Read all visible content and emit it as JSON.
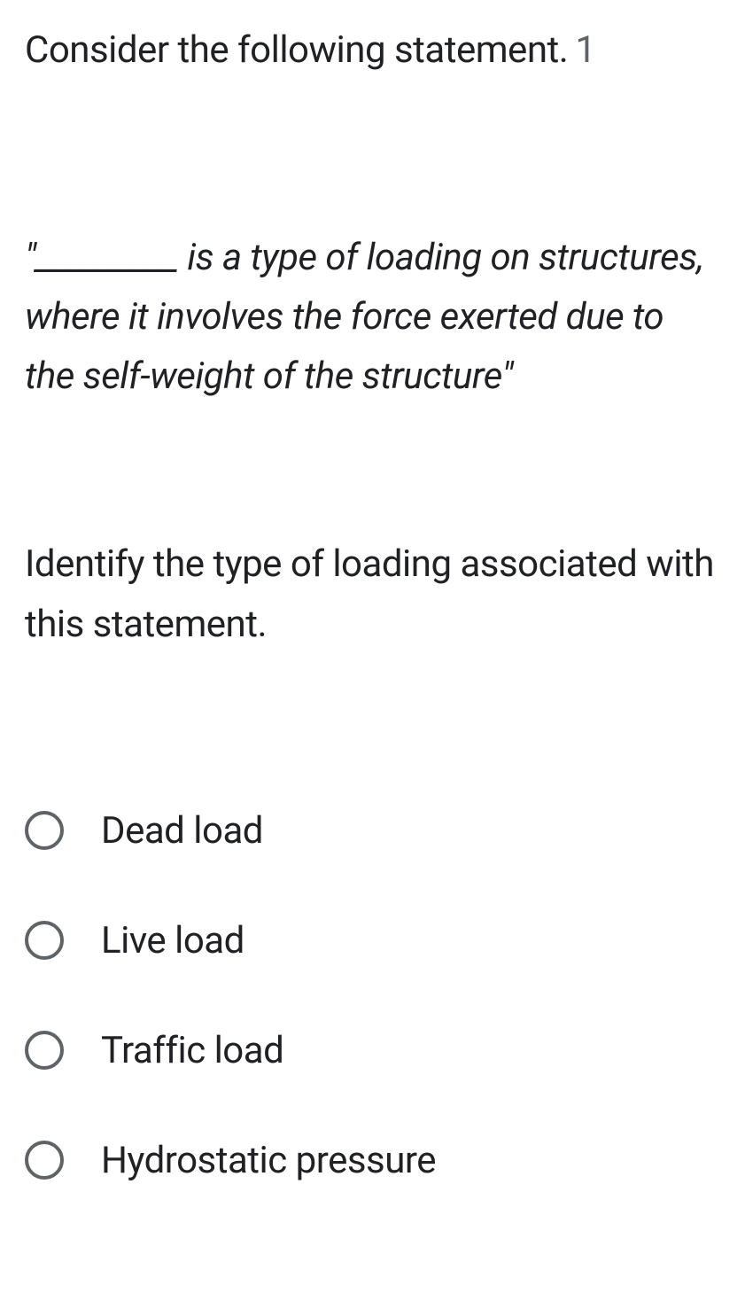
{
  "question": {
    "intro": "Consider the following statement.",
    "point_marker": "1",
    "statement": "\"_________ is a type of loading on structures, where it involves the force exerted due to the self-weight of the structure\"",
    "prompt": "Identify the type of loading associated with this statement."
  },
  "options": [
    {
      "label": "Dead load",
      "selected": false
    },
    {
      "label": "Live load",
      "selected": false
    },
    {
      "label": "Traffic load",
      "selected": false
    },
    {
      "label": "Hydrostatic pressure",
      "selected": false
    }
  ],
  "styling": {
    "background_color": "#ffffff",
    "text_color": "#202124",
    "radio_border_color": "#5f6368",
    "font_size_main": 42,
    "radio_size": 44,
    "radio_border_width": 4
  }
}
